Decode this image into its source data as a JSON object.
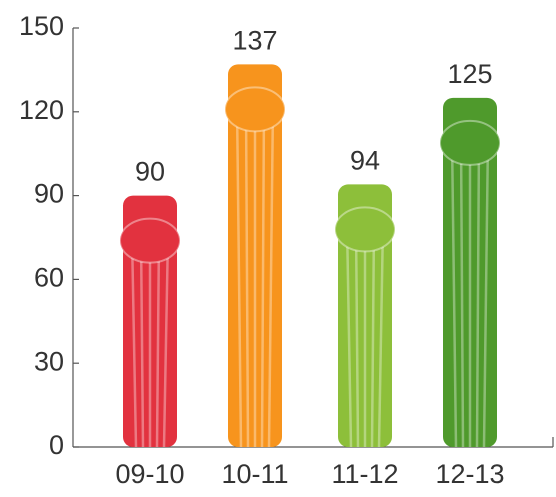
{
  "chart_data": {
    "type": "bar",
    "categories": [
      "09-10",
      "10-11",
      "11-12",
      "12-13"
    ],
    "values": [
      90,
      137,
      94,
      125
    ],
    "colors": [
      "#e2323f",
      "#f7941d",
      "#8dbf3a",
      "#4f9a2c"
    ],
    "ylim": [
      0,
      150
    ],
    "yticks": [
      0,
      30,
      60,
      90,
      120,
      150
    ]
  }
}
